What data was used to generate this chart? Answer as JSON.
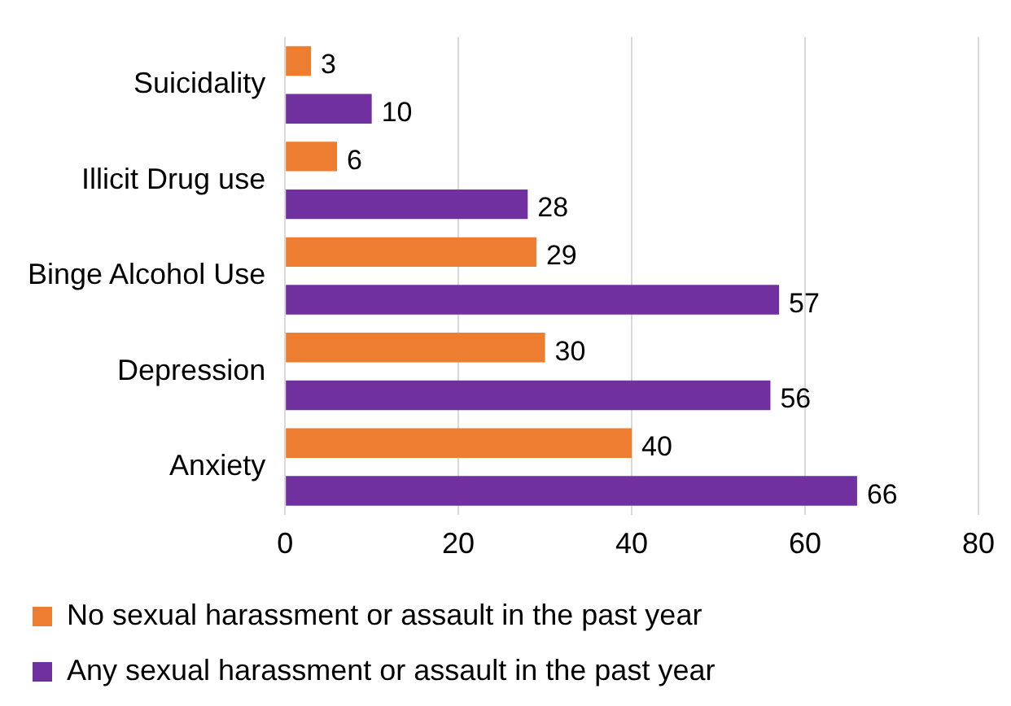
{
  "chart_data": {
    "type": "bar",
    "orientation": "horizontal",
    "categories": [
      "Suicidality",
      "Illicit Drug use",
      "Binge Alcohol Use",
      "Depression",
      "Anxiety"
    ],
    "series": [
      {
        "name": "No sexual harassment or assault in the past year",
        "color": "#ed7d31",
        "values": [
          3,
          6,
          29,
          30,
          40
        ]
      },
      {
        "name": "Any sexual harassment or assault in the past year",
        "color": "#7030a0",
        "values": [
          10,
          28,
          57,
          56,
          66
        ]
      }
    ],
    "xlim": [
      0,
      80
    ],
    "xticks": [
      0,
      20,
      40,
      60,
      80
    ],
    "grid": "x",
    "legend": "bottom",
    "data_labels": true
  }
}
